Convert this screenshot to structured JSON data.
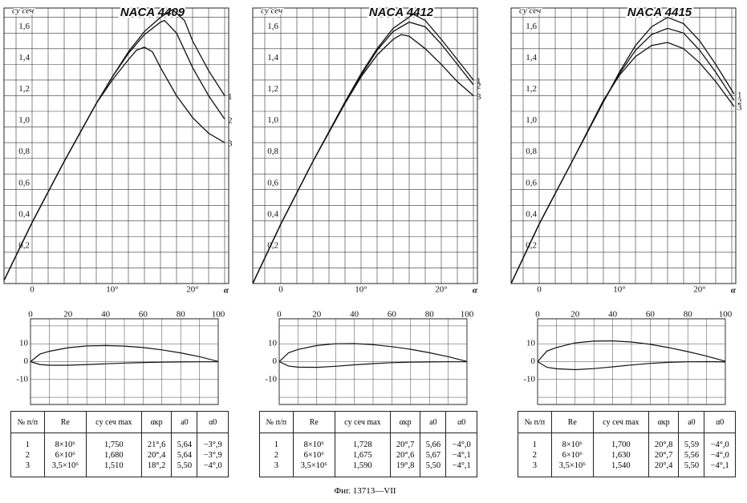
{
  "chart_data": [
    {
      "type": "line",
      "title": "NACA 4409",
      "y_label": "cy сеч",
      "x_label": "α",
      "xlim": [
        -3.5,
        24.5
      ],
      "ylim": [
        0,
        1.76
      ],
      "xticks": [
        0,
        {
          "value": 10,
          "label": "10°"
        },
        {
          "value": 20,
          "label": "20°"
        }
      ],
      "yticks": [
        {
          "value": 0.2,
          "label": "0,2"
        },
        {
          "value": 0.4,
          "label": "0,4"
        },
        {
          "value": 0.6,
          "label": "0,6"
        },
        {
          "value": 0.8,
          "label": "0,8"
        },
        {
          "value": 1.0,
          "label": "1,0"
        },
        {
          "value": 1.2,
          "label": "1,2"
        },
        {
          "value": 1.4,
          "label": "1,4"
        },
        {
          "value": 1.6,
          "label": "1,6"
        }
      ],
      "xgrid": [
        -2,
        0,
        2,
        4,
        6,
        8,
        10,
        12,
        14,
        16,
        18,
        20,
        22,
        24
      ],
      "ygrid": [
        0.1,
        0.2,
        0.3,
        0.4,
        0.5,
        0.6,
        0.7,
        0.8,
        0.9,
        1.0,
        1.1,
        1.2,
        1.3,
        1.4,
        1.5,
        1.6,
        1.7
      ],
      "series": [
        {
          "name": "1",
          "color": "#111",
          "x": [
            -3.5,
            0,
            4,
            8,
            10,
            12,
            14,
            16,
            17.5,
            19,
            20,
            22,
            24
          ],
          "values": [
            0.02,
            0.39,
            0.78,
            1.15,
            1.32,
            1.48,
            1.61,
            1.7,
            1.75,
            1.68,
            1.55,
            1.36,
            1.2
          ]
        },
        {
          "name": "2",
          "color": "#111",
          "x": [
            -3.5,
            0,
            4,
            8,
            10,
            12,
            14,
            16,
            16.5,
            18,
            20,
            22,
            24
          ],
          "values": [
            0.02,
            0.39,
            0.78,
            1.15,
            1.32,
            1.47,
            1.59,
            1.67,
            1.68,
            1.6,
            1.38,
            1.2,
            1.05
          ]
        },
        {
          "name": "3",
          "color": "#111",
          "x": [
            -3.5,
            0,
            4,
            8,
            10,
            12,
            13,
            14,
            15,
            16,
            18,
            20,
            22,
            24
          ],
          "values": [
            0.02,
            0.39,
            0.78,
            1.15,
            1.3,
            1.43,
            1.49,
            1.51,
            1.48,
            1.38,
            1.2,
            1.06,
            0.96,
            0.9
          ]
        }
      ]
    },
    {
      "type": "line",
      "title": "NACA 4412",
      "y_label": "cy сеч",
      "x_label": "α",
      "xlim": [
        -3.5,
        24.5
      ],
      "ylim": [
        0,
        1.76
      ],
      "xticks": [
        0,
        {
          "value": 10,
          "label": "10°"
        },
        {
          "value": 20,
          "label": "20°"
        }
      ],
      "yticks": [
        {
          "value": 0.2,
          "label": "0,2"
        },
        {
          "value": 0.4,
          "label": "0,4"
        },
        {
          "value": 0.6,
          "label": "0,6"
        },
        {
          "value": 0.8,
          "label": "0,8"
        },
        {
          "value": 1.0,
          "label": "1,0"
        },
        {
          "value": 1.2,
          "label": "1,2"
        },
        {
          "value": 1.4,
          "label": "1,4"
        },
        {
          "value": 1.6,
          "label": "1,6"
        }
      ],
      "xgrid": [
        -2,
        0,
        2,
        4,
        6,
        8,
        10,
        12,
        14,
        16,
        18,
        20,
        22,
        24
      ],
      "ygrid": [
        0.1,
        0.2,
        0.3,
        0.4,
        0.5,
        0.6,
        0.7,
        0.8,
        0.9,
        1.0,
        1.1,
        1.2,
        1.3,
        1.4,
        1.5,
        1.6,
        1.7
      ],
      "series": [
        {
          "name": "1",
          "color": "#111",
          "x": [
            -3.5,
            0,
            4,
            8,
            10,
            12,
            14,
            16.5,
            18,
            20,
            22,
            24
          ],
          "values": [
            0.0,
            0.38,
            0.78,
            1.16,
            1.34,
            1.5,
            1.63,
            1.72,
            1.68,
            1.56,
            1.43,
            1.3
          ]
        },
        {
          "name": "2",
          "color": "#111",
          "x": [
            -3.5,
            0,
            4,
            8,
            10,
            12,
            14,
            16,
            18,
            20,
            22,
            24
          ],
          "values": [
            0.0,
            0.38,
            0.78,
            1.16,
            1.33,
            1.49,
            1.61,
            1.67,
            1.64,
            1.53,
            1.4,
            1.27
          ]
        },
        {
          "name": "3",
          "color": "#111",
          "x": [
            -3.5,
            0,
            4,
            8,
            10,
            12,
            14,
            15,
            16,
            18,
            20,
            22,
            24
          ],
          "values": [
            0.0,
            0.38,
            0.78,
            1.15,
            1.32,
            1.46,
            1.56,
            1.59,
            1.58,
            1.5,
            1.4,
            1.29,
            1.2
          ]
        }
      ]
    },
    {
      "type": "line",
      "title": "NACA 4415",
      "y_label": "cy сеч",
      "x_label": "α",
      "xlim": [
        -3.5,
        24.5
      ],
      "ylim": [
        0,
        1.76
      ],
      "xticks": [
        0,
        {
          "value": 10,
          "label": "10°"
        },
        {
          "value": 20,
          "label": "20°"
        }
      ],
      "yticks": [
        {
          "value": 0.2,
          "label": "0,2"
        },
        {
          "value": 0.4,
          "label": "0,4"
        },
        {
          "value": 0.6,
          "label": "0,6"
        },
        {
          "value": 0.8,
          "label": "0,8"
        },
        {
          "value": 1.0,
          "label": "1,0"
        },
        {
          "value": 1.2,
          "label": "1,2"
        },
        {
          "value": 1.4,
          "label": "1,4"
        },
        {
          "value": 1.6,
          "label": "1,6"
        }
      ],
      "xgrid": [
        -2,
        0,
        2,
        4,
        6,
        8,
        10,
        12,
        14,
        16,
        18,
        20,
        22,
        24
      ],
      "ygrid": [
        0.1,
        0.2,
        0.3,
        0.4,
        0.5,
        0.6,
        0.7,
        0.8,
        0.9,
        1.0,
        1.1,
        1.2,
        1.3,
        1.4,
        1.5,
        1.6,
        1.7
      ],
      "series": [
        {
          "name": "1",
          "color": "#111",
          "x": [
            -3.5,
            0,
            4,
            8,
            10,
            12,
            14,
            16,
            18,
            20,
            22,
            24.3
          ],
          "values": [
            0.0,
            0.38,
            0.77,
            1.16,
            1.35,
            1.52,
            1.64,
            1.7,
            1.66,
            1.55,
            1.4,
            1.21
          ]
        },
        {
          "name": "2",
          "color": "#111",
          "x": [
            -3.5,
            0,
            4,
            8,
            10,
            12,
            14,
            16,
            18,
            20,
            22,
            24.3
          ],
          "values": [
            0.0,
            0.38,
            0.77,
            1.16,
            1.34,
            1.49,
            1.59,
            1.63,
            1.6,
            1.49,
            1.35,
            1.17
          ]
        },
        {
          "name": "3",
          "color": "#111",
          "x": [
            -3.5,
            0,
            4,
            8,
            10,
            12,
            14,
            16,
            18,
            20,
            22,
            24.3
          ],
          "values": [
            0.0,
            0.38,
            0.77,
            1.17,
            1.33,
            1.45,
            1.52,
            1.54,
            1.5,
            1.41,
            1.29,
            1.13
          ]
        }
      ]
    },
    {
      "type": "profile",
      "xlim": [
        0,
        100
      ],
      "ylim": [
        -24,
        24
      ],
      "xticks": [
        0,
        20,
        40,
        60,
        80,
        100
      ],
      "yticks": [
        10,
        0,
        -10
      ],
      "xgrid": [
        0,
        10,
        20,
        30,
        40,
        50,
        60,
        70,
        80,
        90,
        100
      ],
      "ygrid": [
        -20,
        -10,
        0,
        10,
        20
      ],
      "series": [
        {
          "color": "#111",
          "x": [
            0,
            5,
            10,
            20,
            30,
            40,
            50,
            60,
            70,
            80,
            90,
            100
          ],
          "values": [
            0,
            4.2,
            5.8,
            7.8,
            8.8,
            9.0,
            8.7,
            7.9,
            6.6,
            4.9,
            2.8,
            0.1
          ]
        },
        {
          "color": "#111",
          "x": [
            0,
            5,
            10,
            20,
            30,
            40,
            50,
            60,
            70,
            80,
            90,
            100
          ],
          "values": [
            0,
            -1.6,
            -2.0,
            -2.0,
            -1.6,
            -1.2,
            -0.8,
            -0.5,
            -0.3,
            -0.2,
            -0.1,
            -0.1
          ]
        }
      ]
    },
    {
      "type": "profile",
      "xlim": [
        0,
        100
      ],
      "ylim": [
        -24,
        24
      ],
      "xticks": [
        0,
        20,
        40,
        60,
        80,
        100
      ],
      "yticks": [
        10,
        0,
        -10
      ],
      "xgrid": [
        0,
        10,
        20,
        30,
        40,
        50,
        60,
        70,
        80,
        90,
        100
      ],
      "ygrid": [
        -20,
        -10,
        0,
        10,
        20
      ],
      "series": [
        {
          "color": "#111",
          "x": [
            0,
            5,
            10,
            20,
            30,
            40,
            50,
            60,
            70,
            80,
            90,
            100
          ],
          "values": [
            0,
            5.0,
            6.8,
            9.0,
            10.0,
            10.1,
            9.5,
            8.4,
            6.9,
            5.0,
            2.8,
            0.1
          ]
        },
        {
          "color": "#111",
          "x": [
            0,
            5,
            10,
            20,
            30,
            40,
            50,
            60,
            70,
            80,
            90,
            100
          ],
          "values": [
            0,
            -2.5,
            -3.1,
            -3.2,
            -2.6,
            -1.8,
            -1.1,
            -0.6,
            -0.3,
            -0.2,
            -0.1,
            -0.1
          ]
        }
      ]
    },
    {
      "type": "profile",
      "xlim": [
        0,
        100
      ],
      "ylim": [
        -24,
        24
      ],
      "xticks": [
        0,
        20,
        40,
        60,
        80,
        100
      ],
      "yticks": [
        10,
        0,
        -10
      ],
      "xgrid": [
        0,
        10,
        20,
        30,
        40,
        50,
        60,
        70,
        80,
        90,
        100
      ],
      "ygrid": [
        -20,
        -10,
        0,
        10,
        20
      ],
      "series": [
        {
          "color": "#111",
          "x": [
            0,
            5,
            10,
            20,
            30,
            40,
            50,
            60,
            70,
            80,
            90,
            100
          ],
          "values": [
            0,
            5.9,
            7.9,
            10.5,
            11.5,
            11.6,
            11.0,
            9.7,
            7.8,
            5.6,
            3.1,
            0.2
          ]
        },
        {
          "color": "#111",
          "x": [
            0,
            5,
            10,
            20,
            30,
            40,
            50,
            60,
            70,
            80,
            90,
            100
          ],
          "values": [
            0,
            -3.2,
            -4.0,
            -4.5,
            -3.9,
            -2.9,
            -1.9,
            -1.0,
            -0.4,
            -0.1,
            0,
            -0.2
          ]
        }
      ]
    }
  ],
  "tables": [
    {
      "header": [
        "№ п/п",
        "Re",
        "cy сеч max",
        "αкр",
        "a0",
        "α0"
      ],
      "rows": [
        [
          "1",
          "8×10⁶",
          "1,750",
          "21°,6",
          "5,64",
          "−3°,9"
        ],
        [
          "2",
          "6×10⁶",
          "1,680",
          "20°,4",
          "5,64",
          "−3°,9"
        ],
        [
          "3",
          "3,5×10⁶",
          "1,510",
          "18°,2",
          "5,50",
          "−4°,0"
        ]
      ]
    },
    {
      "header": [
        "№ п/п",
        "Re",
        "cy сеч max",
        "αкр",
        "a0",
        "α0"
      ],
      "rows": [
        [
          "1",
          "8×10⁶",
          "1,728",
          "20°,7",
          "5,66",
          "−4°,0"
        ],
        [
          "2",
          "6×10⁶",
          "1,675",
          "20°,6",
          "5,67",
          "−4°,1"
        ],
        [
          "3",
          "3,5×10⁶",
          "1,590",
          "19°,8",
          "5,50",
          "−4°,1"
        ]
      ]
    },
    {
      "header": [
        "№ п/п",
        "Re",
        "cy сеч max",
        "αкр",
        "a0",
        "α0"
      ],
      "rows": [
        [
          "1",
          "8×10⁶",
          "1,700",
          "20°,8",
          "5,59",
          "−4°,0"
        ],
        [
          "2",
          "6×10⁶",
          "1,630",
          "20°,7",
          "5,56",
          "−4°,0"
        ],
        [
          "3",
          "3,5×10⁶",
          "1,540",
          "20°,4",
          "5,50",
          "−4°,1"
        ]
      ]
    }
  ],
  "caption": "Фиг. 13713—VII"
}
